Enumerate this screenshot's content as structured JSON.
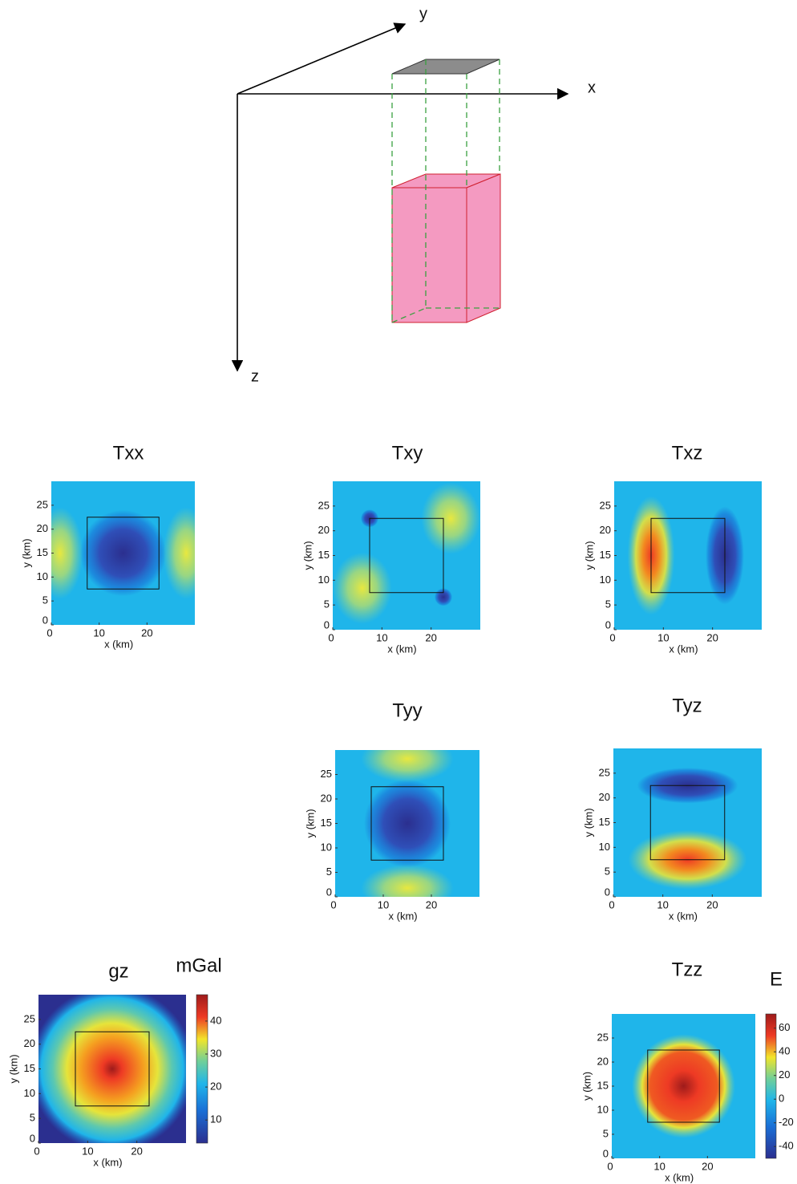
{
  "diagram": {
    "axes": [
      "x",
      "y",
      "z"
    ]
  },
  "chart_data": [
    {
      "type": "heatmap",
      "title": "Txx",
      "xlabel": "x (km)",
      "ylabel": "y (km)",
      "xlim": [
        0,
        30
      ],
      "ylim": [
        0,
        30
      ],
      "xticks": [
        0,
        10,
        20
      ],
      "yticks": [
        0,
        5,
        10,
        15,
        20,
        25
      ]
    },
    {
      "type": "heatmap",
      "title": "Txy",
      "xlabel": "x (km)",
      "ylabel": "y (km)",
      "xlim": [
        0,
        30
      ],
      "ylim": [
        0,
        30
      ],
      "xticks": [
        0,
        10,
        20
      ],
      "yticks": [
        0,
        5,
        10,
        15,
        20,
        25
      ]
    },
    {
      "type": "heatmap",
      "title": "Txz",
      "xlabel": "x (km)",
      "ylabel": "y (km)",
      "xlim": [
        0,
        30
      ],
      "ylim": [
        0,
        30
      ],
      "xticks": [
        0,
        10,
        20
      ],
      "yticks": [
        0,
        5,
        10,
        15,
        20,
        25
      ]
    },
    {
      "type": "heatmap",
      "title": "Tyy",
      "xlabel": "x (km)",
      "ylabel": "y (km)",
      "xlim": [
        0,
        30
      ],
      "ylim": [
        0,
        30
      ],
      "xticks": [
        0,
        10,
        20
      ],
      "yticks": [
        0,
        5,
        10,
        15,
        20,
        25
      ]
    },
    {
      "type": "heatmap",
      "title": "Tyz",
      "xlabel": "x (km)",
      "ylabel": "y (km)",
      "xlim": [
        0,
        30
      ],
      "ylim": [
        0,
        30
      ],
      "xticks": [
        0,
        10,
        20
      ],
      "yticks": [
        0,
        5,
        10,
        15,
        20,
        25
      ]
    },
    {
      "type": "heatmap",
      "title": "gz",
      "xlabel": "x (km)",
      "ylabel": "y (km)",
      "xlim": [
        0,
        30
      ],
      "ylim": [
        0,
        30
      ],
      "xticks": [
        0,
        10,
        20
      ],
      "yticks": [
        0,
        5,
        10,
        15,
        20,
        25
      ],
      "colorbar_label": "mGal",
      "clim": [
        3,
        48
      ],
      "cticks": [
        10,
        20,
        30,
        40
      ]
    },
    {
      "type": "heatmap",
      "title": "Tzz",
      "xlabel": "x (km)",
      "ylabel": "y (km)",
      "xlim": [
        0,
        30
      ],
      "ylim": [
        0,
        30
      ],
      "xticks": [
        0,
        10,
        20
      ],
      "yticks": [
        0,
        5,
        10,
        15,
        20,
        25
      ],
      "colorbar_label": "E",
      "clim": [
        -50,
        72
      ],
      "cticks": [
        -40,
        -20,
        0,
        20,
        40,
        60
      ]
    }
  ]
}
